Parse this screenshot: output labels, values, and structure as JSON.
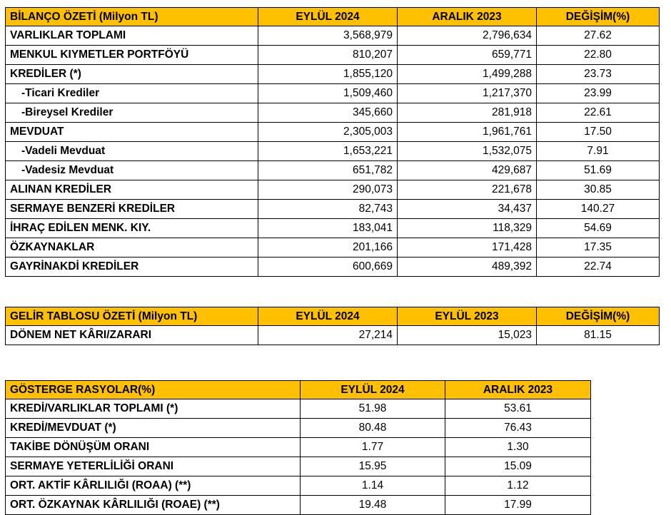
{
  "balance": {
    "headers": [
      "BİLANÇO ÖZETİ (Milyon TL)",
      "EYLÜL 2024",
      "ARALIK 2023",
      "DEĞİŞİM(%)"
    ],
    "rows": [
      {
        "label": "VARLIKLAR TOPLAMI",
        "v1": "3,568,979",
        "v2": "2,796,634",
        "chg": "27.62"
      },
      {
        "label": "MENKUL KIYMETLER PORTFÖYÜ",
        "v1": "810,207",
        "v2": "659,771",
        "chg": "22.80"
      },
      {
        "label": "KREDİLER (*)",
        "v1": "1,855,120",
        "v2": "1,499,288",
        "chg": "23.73"
      },
      {
        "label": "-Ticari Krediler",
        "v1": "1,509,460",
        "v2": "1,217,370",
        "chg": "23.99"
      },
      {
        "label": "-Bireysel Krediler",
        "v1": "345,660",
        "v2": "281,918",
        "chg": "22.61"
      },
      {
        "label": "MEVDUAT",
        "v1": "2,305,003",
        "v2": "1,961,761",
        "chg": "17.50"
      },
      {
        "label": "-Vadeli Mevduat",
        "v1": "1,653,221",
        "v2": "1,532,075",
        "chg": "7.91"
      },
      {
        "label": "-Vadesiz Mevduat",
        "v1": "651,782",
        "v2": "429,687",
        "chg": "51.69"
      },
      {
        "label": "ALINAN KREDİLER",
        "v1": "290,073",
        "v2": "221,678",
        "chg": "30.85"
      },
      {
        "label": "SERMAYE BENZERİ KREDİLER",
        "v1": "82,743",
        "v2": "34,437",
        "chg": "140.27"
      },
      {
        "label": "İHRAÇ EDİLEN MENK. KIY.",
        "v1": "183,041",
        "v2": "118,329",
        "chg": "54.69"
      },
      {
        "label": "ÖZKAYNAKLAR",
        "v1": "201,166",
        "v2": "171,428",
        "chg": "17.35"
      },
      {
        "label": "GAYRİNAKDİ KREDİLER",
        "v1": "600,669",
        "v2": "489,392",
        "chg": "22.74"
      }
    ]
  },
  "income": {
    "headers": [
      "GELİR TABLOSU ÖZETİ (Milyon TL)",
      "EYLÜL 2024",
      "EYLÜL 2023",
      "DEĞİŞİM(%)"
    ],
    "rows": [
      {
        "label": "DÖNEM NET KÂRI/ZARARI",
        "v1": "27,214",
        "v2": "15,023",
        "chg": "81.15"
      }
    ]
  },
  "ratios": {
    "headers": [
      "GÖSTERGE RASYOLAR(%)",
      "EYLÜL 2024",
      "ARALIK 2023"
    ],
    "rows": [
      {
        "label": "KREDİ/VARLIKLAR TOPLAMI (*)",
        "v1": "51.98",
        "v2": "53.61"
      },
      {
        "label": "KREDİ/MEVDUAT (*)",
        "v1": "80.48",
        "v2": "76.43"
      },
      {
        "label": "TAKİBE DÖNÜŞÜM ORANI",
        "v1": "1.77",
        "v2": "1.30"
      },
      {
        "label": "SERMAYE YETERLİLİĞİ ORANI",
        "v1": "15.95",
        "v2": "15.09"
      },
      {
        "label": "ORT. AKTİF KÂRLILIĞI (ROAA) (**)",
        "v1": "1.14",
        "v2": "1.12"
      },
      {
        "label": "ORT. ÖZKAYNAK KÂRLILIĞI (ROAE) (**)",
        "v1": "19.48",
        "v2": "17.99"
      }
    ]
  }
}
